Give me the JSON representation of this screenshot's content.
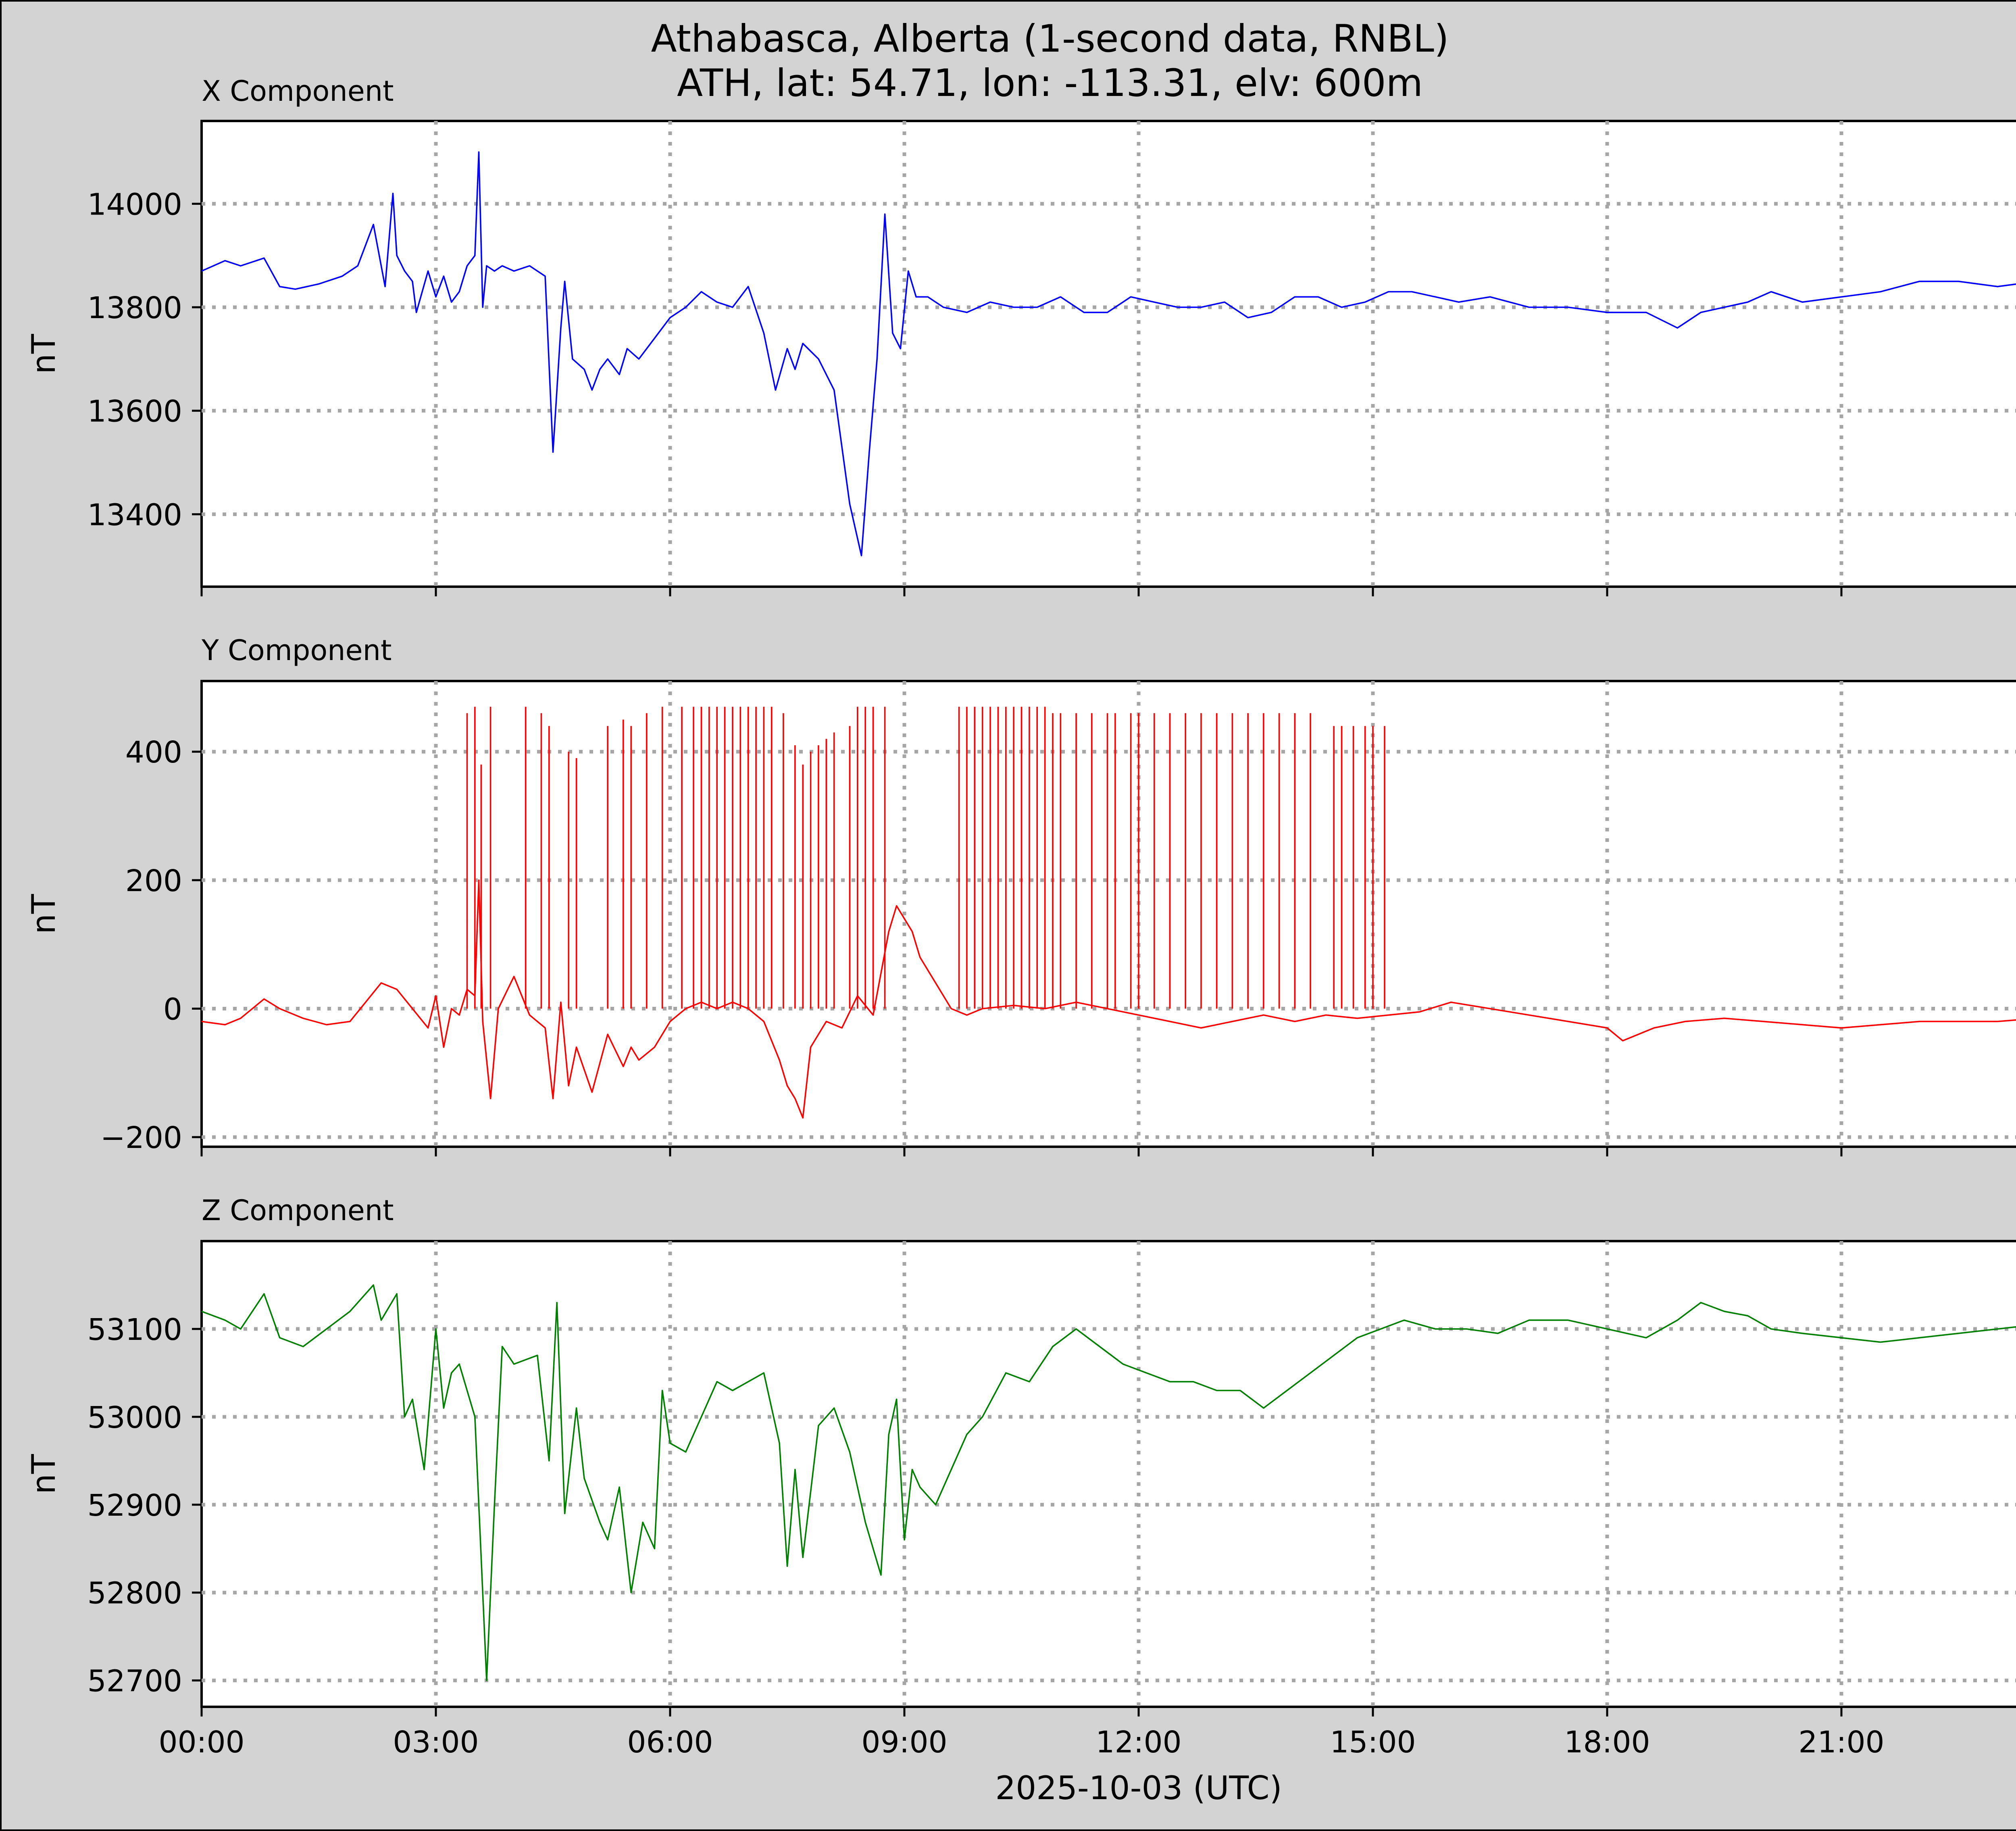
{
  "page": {
    "background": "#d3d3d3"
  },
  "chart_data": {
    "type": "line",
    "title": "Athabasca, Alberta (1-second data, RNBL)",
    "subtitle": "ATH, lat: 54.71, lon: -113.31, elv: 600m",
    "xlabel": "2025-10-03 (UTC)",
    "x_unit": "hours UTC",
    "xlim": [
      0,
      24
    ],
    "x_tick_values": [
      0,
      3,
      6,
      9,
      12,
      15,
      18,
      21
    ],
    "x_tick_labels": [
      "00:00",
      "03:00",
      "06:00",
      "09:00",
      "12:00",
      "15:00",
      "18:00",
      "21:00"
    ],
    "grid": true,
    "panels": [
      {
        "title": "X Component",
        "ylabel": "nT",
        "color": "#0000ff",
        "ylim": [
          13260,
          14160
        ],
        "y_ticks": [
          13400,
          13600,
          13800,
          14000
        ],
        "x": [
          0,
          0.3,
          0.5,
          0.8,
          1.0,
          1.2,
          1.5,
          1.8,
          2.0,
          2.2,
          2.35,
          2.45,
          2.5,
          2.6,
          2.7,
          2.75,
          2.9,
          3.0,
          3.1,
          3.2,
          3.3,
          3.4,
          3.5,
          3.55,
          3.6,
          3.65,
          3.75,
          3.85,
          4.0,
          4.2,
          4.4,
          4.5,
          4.6,
          4.65,
          4.75,
          4.9,
          5.0,
          5.1,
          5.2,
          5.35,
          5.45,
          5.6,
          5.8,
          6.0,
          6.2,
          6.4,
          6.6,
          6.8,
          7.0,
          7.2,
          7.35,
          7.5,
          7.6,
          7.7,
          7.9,
          8.1,
          8.3,
          8.45,
          8.55,
          8.65,
          8.75,
          8.85,
          8.95,
          9.05,
          9.15,
          9.3,
          9.5,
          9.8,
          10.1,
          10.4,
          10.7,
          11.0,
          11.3,
          11.6,
          11.9,
          12.2,
          12.5,
          12.8,
          13.1,
          13.4,
          13.7,
          14.0,
          14.3,
          14.6,
          14.9,
          15.2,
          15.5,
          15.8,
          16.1,
          16.5,
          17.0,
          17.5,
          18.0,
          18.5,
          18.9,
          19.2,
          19.5,
          19.8,
          20.1,
          20.5,
          21.0,
          21.5,
          22.0,
          22.5,
          23.0,
          23.5,
          24.0
        ],
        "values": [
          13870,
          13890,
          13880,
          13895,
          13840,
          13835,
          13845,
          13860,
          13880,
          13960,
          13840,
          14020,
          13900,
          13870,
          13850,
          13790,
          13870,
          13820,
          13860,
          13810,
          13830,
          13880,
          13900,
          14100,
          13800,
          13880,
          13870,
          13880,
          13870,
          13880,
          13860,
          13520,
          13760,
          13850,
          13700,
          13680,
          13640,
          13680,
          13700,
          13670,
          13720,
          13700,
          13740,
          13780,
          13800,
          13830,
          13810,
          13800,
          13840,
          13750,
          13640,
          13720,
          13680,
          13730,
          13700,
          13640,
          13420,
          13320,
          13520,
          13700,
          13980,
          13750,
          13720,
          13870,
          13820,
          13820,
          13800,
          13790,
          13810,
          13800,
          13800,
          13820,
          13790,
          13790,
          13820,
          13810,
          13800,
          13800,
          13810,
          13780,
          13790,
          13820,
          13820,
          13800,
          13810,
          13830,
          13830,
          13820,
          13810,
          13820,
          13800,
          13800,
          13790,
          13790,
          13760,
          13790,
          13800,
          13810,
          13830,
          13810,
          13820,
          13830,
          13850,
          13850,
          13840,
          13850,
          13830
        ]
      },
      {
        "title": "Y Component",
        "ylabel": "nT",
        "color": "#ff0000",
        "ylim": [
          -215,
          510
        ],
        "y_ticks": [
          -200,
          0,
          200,
          400
        ],
        "x": [
          0,
          0.3,
          0.5,
          0.8,
          1.0,
          1.3,
          1.6,
          1.9,
          2.1,
          2.3,
          2.5,
          2.7,
          2.9,
          3.0,
          3.1,
          3.2,
          3.3,
          3.4,
          3.5,
          3.55,
          3.6,
          3.7,
          3.8,
          4.0,
          4.2,
          4.4,
          4.5,
          4.6,
          4.7,
          4.8,
          5.0,
          5.2,
          5.4,
          5.5,
          5.6,
          5.8,
          6.0,
          6.2,
          6.4,
          6.6,
          6.8,
          7.0,
          7.2,
          7.4,
          7.5,
          7.6,
          7.7,
          7.8,
          8.0,
          8.2,
          8.4,
          8.6,
          8.8,
          8.9,
          9.0,
          9.1,
          9.2,
          9.4,
          9.6,
          9.8,
          10.0,
          10.4,
          10.8,
          11.2,
          11.6,
          12.0,
          12.4,
          12.8,
          13.2,
          13.6,
          14.0,
          14.4,
          14.8,
          15.2,
          15.6,
          16.0,
          16.5,
          17.0,
          17.5,
          18.0,
          18.2,
          18.4,
          18.6,
          19.0,
          19.5,
          20.0,
          20.5,
          21.0,
          21.5,
          22.0,
          22.5,
          23.0,
          23.5,
          24.0
        ],
        "values": [
          -20,
          -25,
          -15,
          15,
          0,
          -15,
          -25,
          -20,
          10,
          40,
          30,
          0,
          -30,
          20,
          -60,
          0,
          -10,
          30,
          20,
          200,
          -20,
          -140,
          0,
          50,
          -10,
          -30,
          -140,
          10,
          -120,
          -60,
          -130,
          -40,
          -90,
          -60,
          -80,
          -60,
          -20,
          0,
          10,
          0,
          10,
          0,
          -20,
          -80,
          -120,
          -140,
          -170,
          -60,
          -20,
          -30,
          20,
          -10,
          120,
          160,
          140,
          120,
          80,
          40,
          0,
          -10,
          0,
          5,
          0,
          10,
          0,
          -10,
          -20,
          -30,
          -20,
          -10,
          -20,
          -10,
          -15,
          -10,
          -5,
          10,
          0,
          -10,
          -20,
          -30,
          -50,
          -40,
          -30,
          -20,
          -15,
          -20,
          -25,
          -30,
          -25,
          -20,
          -20,
          -20,
          -15,
          -10
        ],
        "spike_x": [
          3.4,
          3.5,
          3.58,
          3.7,
          4.15,
          4.35,
          4.45,
          4.7,
          4.8,
          5.2,
          5.4,
          5.5,
          5.7,
          5.9,
          6.15,
          6.3,
          6.4,
          6.5,
          6.6,
          6.7,
          6.8,
          6.9,
          7.0,
          7.1,
          7.2,
          7.3,
          7.45,
          7.6,
          7.7,
          7.8,
          7.9,
          8.0,
          8.1,
          8.3,
          8.4,
          8.5,
          8.6,
          8.75,
          9.7,
          9.8,
          9.9,
          10.0,
          10.1,
          10.2,
          10.3,
          10.4,
          10.5,
          10.6,
          10.7,
          10.8,
          10.9,
          11.0,
          11.2,
          11.4,
          11.6,
          11.7,
          11.9,
          12.0,
          12.2,
          12.4,
          12.6,
          12.8,
          13.0,
          13.2,
          13.4,
          13.6,
          13.8,
          14.0,
          14.2,
          14.5,
          14.6,
          14.75,
          14.9,
          15.0,
          15.15
        ],
        "spike_values": [
          460,
          470,
          380,
          470,
          470,
          460,
          440,
          400,
          390,
          440,
          450,
          440,
          460,
          470,
          470,
          470,
          470,
          470,
          470,
          470,
          470,
          470,
          470,
          470,
          470,
          470,
          460,
          410,
          380,
          400,
          410,
          420,
          430,
          440,
          470,
          470,
          470,
          470,
          470,
          470,
          470,
          470,
          470,
          470,
          470,
          470,
          470,
          470,
          470,
          470,
          460,
          460,
          460,
          460,
          460,
          460,
          460,
          460,
          460,
          460,
          460,
          460,
          460,
          460,
          460,
          460,
          460,
          460,
          460,
          440,
          440,
          440,
          440,
          440,
          440
        ]
      },
      {
        "title": "Z Component",
        "ylabel": "nT",
        "color": "#008000",
        "ylim": [
          52670,
          53200
        ],
        "y_ticks": [
          52700,
          52800,
          52900,
          53000,
          53100
        ],
        "x": [
          0,
          0.3,
          0.5,
          0.8,
          1.0,
          1.3,
          1.6,
          1.9,
          2.2,
          2.3,
          2.5,
          2.6,
          2.7,
          2.85,
          3.0,
          3.1,
          3.2,
          3.3,
          3.5,
          3.6,
          3.65,
          3.75,
          3.85,
          4.0,
          4.3,
          4.45,
          4.55,
          4.65,
          4.8,
          4.9,
          5.1,
          5.2,
          5.35,
          5.5,
          5.65,
          5.8,
          5.9,
          6.0,
          6.2,
          6.4,
          6.6,
          6.8,
          7.0,
          7.2,
          7.4,
          7.5,
          7.6,
          7.7,
          7.9,
          8.1,
          8.3,
          8.5,
          8.7,
          8.8,
          8.9,
          9.0,
          9.1,
          9.2,
          9.4,
          9.6,
          9.8,
          10.0,
          10.3,
          10.6,
          10.9,
          11.2,
          11.5,
          11.8,
          12.1,
          12.4,
          12.7,
          13.0,
          13.3,
          13.6,
          13.9,
          14.2,
          14.5,
          14.8,
          15.1,
          15.4,
          15.8,
          16.2,
          16.6,
          17.0,
          17.5,
          18.0,
          18.5,
          18.9,
          19.2,
          19.5,
          19.8,
          20.1,
          20.5,
          21.0,
          21.5,
          22.0,
          22.5,
          23.0,
          23.5,
          24.0
        ],
        "values": [
          53120,
          53110,
          53100,
          53140,
          53090,
          53080,
          53100,
          53120,
          53150,
          53110,
          53140,
          53000,
          53020,
          52940,
          53100,
          53010,
          53050,
          53060,
          53000,
          52800,
          52700,
          52900,
          53080,
          53060,
          53070,
          52950,
          53130,
          52890,
          53010,
          52930,
          52880,
          52860,
          52920,
          52800,
          52880,
          52850,
          53030,
          52970,
          52960,
          53000,
          53040,
          53030,
          53040,
          53050,
          52970,
          52830,
          52940,
          52840,
          52990,
          53010,
          52960,
          52880,
          52820,
          52980,
          53020,
          52860,
          52940,
          52920,
          52900,
          52940,
          52980,
          53000,
          53050,
          53040,
          53080,
          53100,
          53080,
          53060,
          53050,
          53040,
          53040,
          53030,
          53030,
          53010,
          53030,
          53050,
          53070,
          53090,
          53100,
          53110,
          53100,
          53100,
          53095,
          53110,
          53110,
          53100,
          53090,
          53110,
          53130,
          53120,
          53115,
          53100,
          53095,
          53090,
          53085,
          53090,
          53095,
          53100,
          53105,
          53110
        ]
      }
    ]
  }
}
